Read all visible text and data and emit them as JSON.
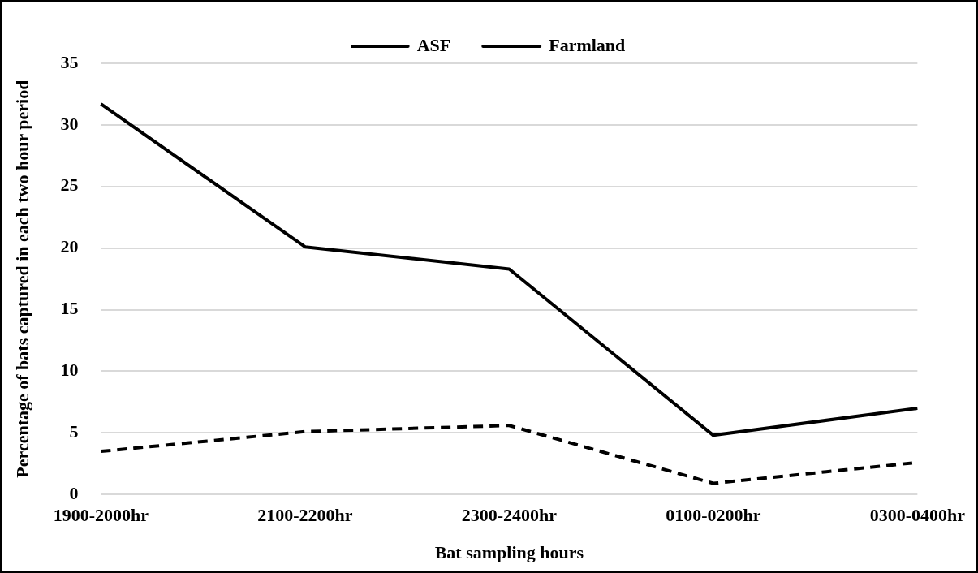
{
  "chart_data": {
    "type": "line",
    "xlabel": "Bat sampling hours",
    "ylabel": "Percentage of bats captured in each two hour period",
    "categories": [
      "1900-2000hr",
      "2100-2200hr",
      "2300-2400hr",
      "0100-0200hr",
      "0300-0400hr"
    ],
    "series": [
      {
        "name": "ASF",
        "color": "#000000",
        "line_style": "dashed",
        "values": [
          3.5,
          5.1,
          5.6,
          0.9,
          2.6
        ]
      },
      {
        "name": "Farmland",
        "color": "#000000",
        "line_style": "solid",
        "values": [
          31.7,
          20.1,
          18.3,
          4.8,
          7.0
        ]
      }
    ],
    "ylim": [
      0,
      35
    ],
    "yticks": [
      0,
      5,
      10,
      15,
      20,
      25,
      30,
      35
    ],
    "grid": "y",
    "legend": "top",
    "marker": "none"
  }
}
